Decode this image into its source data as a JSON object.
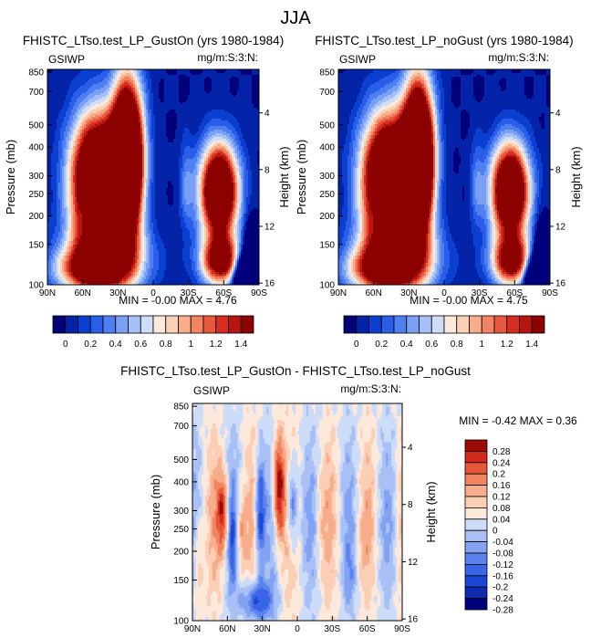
{
  "page": {
    "title": "JJA"
  },
  "colors": {
    "topScale": [
      "#00007a",
      "#0324a8",
      "#0a3fd0",
      "#2a5ee8",
      "#4e80f2",
      "#7aa0f4",
      "#a5c0f6",
      "#cfdef8",
      "#fde9dc",
      "#fbd0b5",
      "#f7ad8c",
      "#f28463",
      "#e8573e",
      "#d62d1f",
      "#b81410",
      "#8c0000"
    ],
    "diffScale": [
      "#00007a",
      "#0c2bb0",
      "#1c47d6",
      "#3a65e6",
      "#5b83ee",
      "#83a3f2",
      "#a9c0f5",
      "#cddcf8",
      "#fde8dc",
      "#fbcfb6",
      "#f7ad8c",
      "#f2845f",
      "#e65637",
      "#d12a1a",
      "#9c0a05"
    ]
  },
  "chart_data": [
    {
      "id": "panel-1",
      "type": "contour",
      "title": "FHISTC_LTso.test_LP_GustOn (yrs 1980-1984)",
      "left_label": "GSIWP",
      "right_label": "mg/m:S:3:N:",
      "ylabel": "Pressure (mb)",
      "y2label": "Height (km)",
      "x_ticks": [
        "90N",
        "60N",
        "30N",
        "0",
        "30S",
        "60S",
        "90S"
      ],
      "y_ticks": [
        "100",
        "150",
        "200",
        "250",
        "300",
        "400",
        "500",
        "700",
        "850"
      ],
      "y2_ticks": [
        "16",
        "12",
        "8",
        "4"
      ],
      "stats": {
        "min": "-0.00",
        "max": "4.76"
      },
      "stats_label": "MIN = -0.00  MAX =  4.76",
      "xlim": [
        90,
        -90
      ],
      "ylim": [
        875,
        100
      ],
      "y2lim": [
        0,
        16
      ],
      "variant": 0
    },
    {
      "id": "panel-2",
      "type": "contour",
      "title": "FHISTC_LTso.test_LP_noGust (yrs 1980-1984)",
      "left_label": "GSIWP",
      "right_label": "mg/m:S:3:N:",
      "ylabel": "Pressure (mb)",
      "y2label": "Height (km)",
      "x_ticks": [
        "90N",
        "60N",
        "30N",
        "0",
        "30S",
        "60S",
        "90S"
      ],
      "y_ticks": [
        "100",
        "150",
        "200",
        "250",
        "300",
        "400",
        "500",
        "700",
        "850"
      ],
      "y2_ticks": [
        "16",
        "12",
        "8",
        "4"
      ],
      "stats": {
        "min": "-0.00",
        "max": "4.75"
      },
      "stats_label": "MIN = -0.00  MAX =  4.75",
      "xlim": [
        90,
        -90
      ],
      "ylim": [
        875,
        100
      ],
      "y2lim": [
        0,
        16
      ],
      "variant": 1
    },
    {
      "id": "panel-diff",
      "type": "contour",
      "title": "FHISTC_LTso.test_LP_GustOn - FHISTC_LTso.test_LP_noGust",
      "left_label": "GSIWP",
      "right_label": "mg/m:S:3:N:",
      "ylabel": "Pressure (mb)",
      "y2label": "Height (km)",
      "x_ticks": [
        "90N",
        "60N",
        "30N",
        "0",
        "30S",
        "60S",
        "90S"
      ],
      "y_ticks": [
        "100",
        "150",
        "200",
        "250",
        "300",
        "400",
        "500",
        "700",
        "850"
      ],
      "y2_ticks": [
        "16",
        "12",
        "8",
        "4"
      ],
      "stats": {
        "min": "-0.42",
        "max": "0.36"
      },
      "stats_label": "MIN = -0.42  MAX =  0.36",
      "xlim": [
        90,
        -90
      ],
      "ylim": [
        875,
        100
      ],
      "y2lim": [
        0,
        16
      ]
    }
  ],
  "colorbars": {
    "top": {
      "labels": [
        "0",
        "0.2",
        "0.4",
        "0.6",
        "0.8",
        "1",
        "1.2",
        "1.4"
      ]
    },
    "diff": {
      "labels": [
        "0.28",
        "0.24",
        "0.2",
        "0.16",
        "0.12",
        "0.08",
        "0.04",
        "0",
        "-0.04",
        "-0.08",
        "-0.12",
        "-0.16",
        "-0.2",
        "-0.24",
        "-0.28"
      ]
    }
  }
}
